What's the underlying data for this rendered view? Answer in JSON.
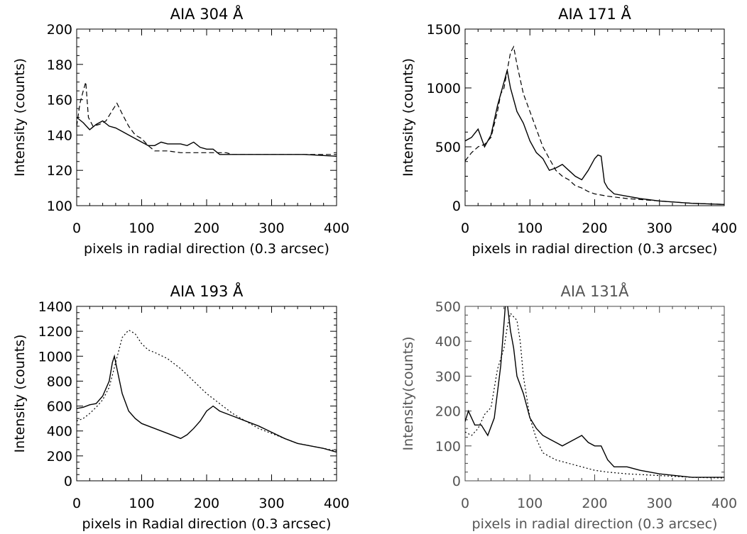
{
  "chart_data": [
    {
      "type": "line",
      "title": "AIA 304 Å",
      "xlabel": "pixels in radial direction (0.3 arcsec)",
      "ylabel": "Intensity (counts)",
      "xlim": [
        0,
        400
      ],
      "ylim": [
        100,
        200
      ],
      "xticks": [
        0,
        100,
        200,
        300,
        400
      ],
      "yticks": [
        100,
        120,
        140,
        160,
        180,
        200
      ],
      "grid": false,
      "series": [
        {
          "style": "solid",
          "x": [
            0,
            10,
            20,
            30,
            40,
            50,
            60,
            70,
            80,
            90,
            100,
            110,
            120,
            130,
            140,
            150,
            160,
            170,
            180,
            190,
            200,
            210,
            220,
            230,
            240,
            260,
            300,
            350,
            400
          ],
          "y": [
            150,
            147,
            143,
            146,
            148,
            145,
            144,
            142,
            140,
            138,
            136,
            134,
            134,
            136,
            135,
            135,
            135,
            134,
            136,
            133,
            132,
            132,
            129,
            129,
            129,
            129,
            129,
            129,
            128
          ]
        },
        {
          "style": "dashed",
          "x": [
            0,
            5,
            10,
            14,
            18,
            25,
            35,
            45,
            55,
            62,
            70,
            80,
            90,
            100,
            110,
            120,
            140,
            160,
            180,
            200,
            210,
            220,
            230,
            240,
            260,
            300,
            350,
            400
          ],
          "y": [
            145,
            158,
            165,
            170,
            150,
            145,
            146,
            148,
            154,
            158,
            152,
            145,
            140,
            138,
            134,
            131,
            131,
            130,
            130,
            130,
            130,
            130,
            130,
            129,
            129,
            129,
            129,
            129
          ]
        }
      ]
    },
    {
      "type": "line",
      "title": "AIA 171 Å",
      "xlabel": "pixels in radial direction (0.3 arcsec)",
      "ylabel": "Intensity (counts)",
      "xlim": [
        0,
        400
      ],
      "ylim": [
        0,
        1500
      ],
      "xticks": [
        0,
        100,
        200,
        300,
        400
      ],
      "yticks": [
        0,
        500,
        1000,
        1500
      ],
      "grid": false,
      "series": [
        {
          "style": "solid",
          "x": [
            0,
            10,
            20,
            30,
            40,
            50,
            60,
            65,
            70,
            80,
            90,
            100,
            110,
            120,
            130,
            140,
            150,
            160,
            170,
            180,
            190,
            200,
            205,
            210,
            215,
            220,
            230,
            250,
            270,
            300,
            350,
            400
          ],
          "y": [
            550,
            580,
            650,
            500,
            600,
            850,
            1050,
            1150,
            1000,
            800,
            700,
            550,
            450,
            400,
            300,
            320,
            350,
            300,
            250,
            220,
            300,
            400,
            430,
            420,
            200,
            150,
            100,
            80,
            60,
            40,
            20,
            10
          ]
        },
        {
          "style": "dashed",
          "x": [
            0,
            10,
            20,
            30,
            40,
            50,
            55,
            60,
            70,
            75,
            80,
            90,
            100,
            110,
            120,
            130,
            140,
            150,
            160,
            170,
            180,
            190,
            200,
            220,
            250,
            300,
            350,
            400
          ],
          "y": [
            380,
            450,
            500,
            520,
            580,
            800,
            950,
            1000,
            1300,
            1350,
            1200,
            950,
            800,
            650,
            500,
            400,
            300,
            250,
            220,
            170,
            150,
            120,
            100,
            80,
            60,
            40,
            20,
            10
          ]
        }
      ]
    },
    {
      "type": "line",
      "title": "AIA 193 Å",
      "xlabel": "pixels in Radial direction (0.3 arcsec)",
      "ylabel": "Intensity (counts)",
      "xlim": [
        0,
        400
      ],
      "ylim": [
        0,
        1400
      ],
      "xticks": [
        0,
        100,
        200,
        300,
        400
      ],
      "yticks": [
        0,
        200,
        400,
        600,
        800,
        1000,
        1200,
        1400
      ],
      "grid": false,
      "series": [
        {
          "style": "solid",
          "x": [
            0,
            10,
            20,
            30,
            40,
            50,
            55,
            58,
            62,
            70,
            80,
            90,
            100,
            120,
            140,
            160,
            170,
            180,
            190,
            200,
            210,
            220,
            240,
            260,
            280,
            300,
            320,
            340,
            360,
            380,
            400
          ],
          "y": [
            580,
            590,
            610,
            620,
            680,
            800,
            950,
            1000,
            900,
            700,
            560,
            500,
            460,
            420,
            380,
            340,
            370,
            420,
            480,
            560,
            600,
            560,
            520,
            480,
            440,
            390,
            340,
            300,
            280,
            260,
            230
          ]
        },
        {
          "style": "dotted",
          "x": [
            0,
            10,
            20,
            30,
            40,
            50,
            60,
            70,
            80,
            90,
            100,
            110,
            120,
            140,
            160,
            180,
            200,
            220,
            240,
            260,
            280,
            300,
            320,
            340,
            360,
            380,
            400
          ],
          "y": [
            480,
            500,
            540,
            590,
            650,
            750,
            950,
            1150,
            1210,
            1180,
            1100,
            1050,
            1030,
            980,
            900,
            800,
            700,
            620,
            540,
            480,
            420,
            380,
            340,
            300,
            280,
            260,
            240
          ]
        }
      ]
    },
    {
      "type": "line",
      "title": "AIA 131Å",
      "xlabel": "pixels in radial direction (0.3 arcsec)",
      "ylabel": "Intensity(counts)",
      "xlim": [
        0,
        400
      ],
      "ylim": [
        0,
        500
      ],
      "xticks": [
        0,
        100,
        200,
        300,
        400
      ],
      "yticks": [
        0,
        100,
        200,
        300,
        400,
        500
      ],
      "grid": false,
      "series": [
        {
          "style": "solid",
          "x": [
            0,
            5,
            15,
            25,
            35,
            45,
            55,
            62,
            65,
            70,
            75,
            80,
            90,
            100,
            110,
            120,
            130,
            140,
            150,
            160,
            170,
            180,
            190,
            200,
            210,
            220,
            230,
            250,
            270,
            300,
            350,
            400
          ],
          "y": [
            170,
            200,
            160,
            160,
            130,
            180,
            330,
            500,
            510,
            430,
            380,
            300,
            250,
            180,
            150,
            130,
            120,
            110,
            100,
            110,
            120,
            130,
            110,
            100,
            100,
            60,
            40,
            40,
            30,
            20,
            10,
            10
          ]
        },
        {
          "style": "dotted",
          "x": [
            0,
            10,
            20,
            30,
            40,
            50,
            60,
            65,
            70,
            75,
            80,
            85,
            90,
            100,
            110,
            120,
            140,
            160,
            180,
            200,
            220,
            250,
            300,
            350,
            400
          ],
          "y": [
            140,
            130,
            150,
            190,
            210,
            320,
            380,
            440,
            480,
            470,
            460,
            400,
            300,
            180,
            120,
            80,
            60,
            50,
            40,
            30,
            25,
            20,
            15,
            10,
            8
          ]
        }
      ]
    }
  ]
}
